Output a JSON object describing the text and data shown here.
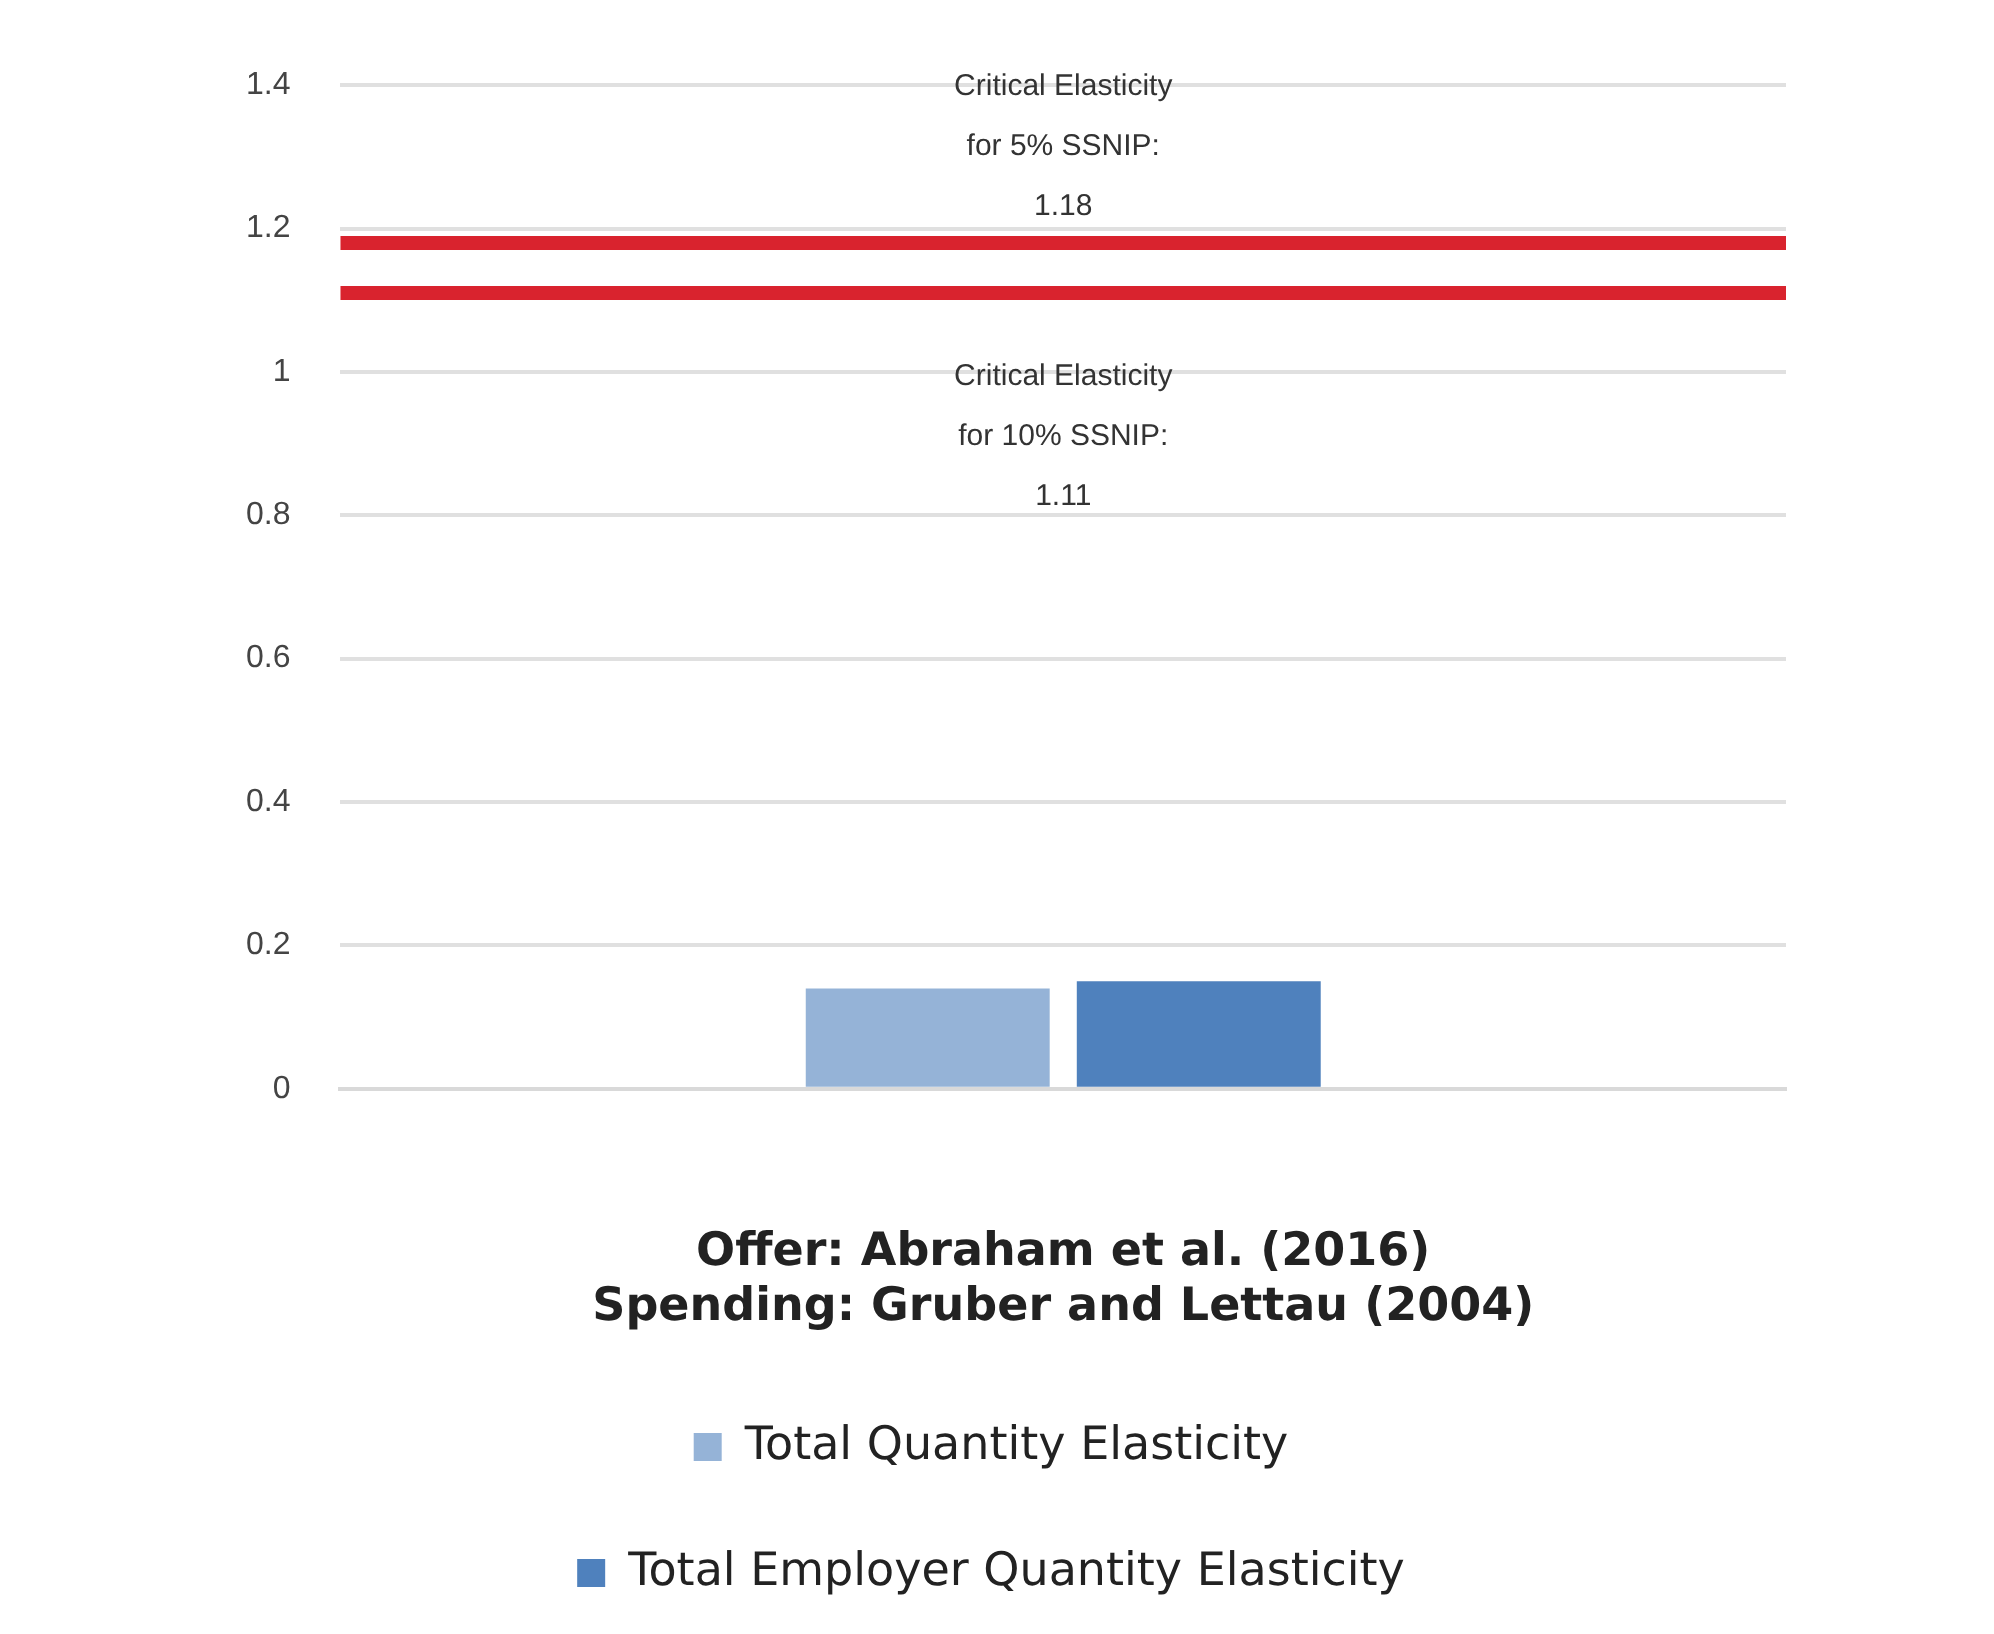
{
  "chart_data": {
    "type": "bar",
    "categories": [
      null
    ],
    "xlabel": "Offer: Abraham et al. (2016)\nSpending: Gruber and Lettau (2004)",
    "series": [
      {
        "name": "Total Quantity Elasticity",
        "color": "#95b3d7",
        "values": [
          0.14
        ]
      },
      {
        "name": "Total Employer Quantity Elasticity",
        "color": "#4f81bd",
        "values": [
          0.15
        ]
      }
    ],
    "ylim": [
      0,
      1.4
    ],
    "yticks": [
      0,
      0.2,
      0.4,
      0.6,
      0.8,
      1,
      1.2,
      1.4
    ],
    "grid": "y",
    "legend": "bottom",
    "ref_lines": [
      {
        "axis": "y",
        "value": 1.18,
        "label": "Critical Elasticity\nfor 5% SSNIP:\n1.18",
        "color": "#d9232e"
      },
      {
        "axis": "y",
        "value": 1.11,
        "label": "Critical Elasticity\nfor 10% SSNIP:\n1.11",
        "color": "#d9232e"
      }
    ]
  }
}
